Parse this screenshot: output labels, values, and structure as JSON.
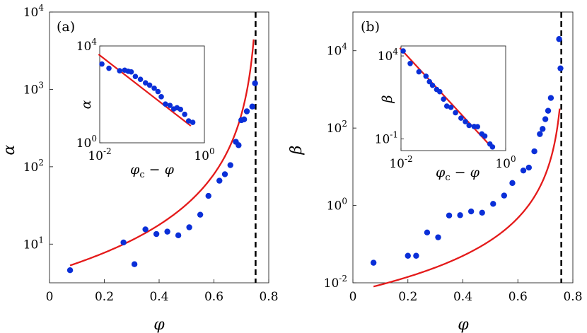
{
  "chart_data": [
    {
      "panel": "(a)",
      "type": "scatter",
      "xlabel": "φ",
      "ylabel": "α",
      "xlim": [
        0,
        0.8
      ],
      "ylim_log10": [
        0.5,
        4
      ],
      "xticks": [
        "0",
        "0.2",
        "0.4",
        "0.6",
        "0.8"
      ],
      "yticks": [
        {
          "base": "10",
          "exp": "1"
        },
        {
          "base": "10",
          "exp": "2"
        },
        {
          "base": "10",
          "exp": "3"
        },
        {
          "base": "10",
          "exp": "4"
        }
      ],
      "critical_phi": 0.752,
      "points": [
        [
          0.075,
          4.6
        ],
        [
          0.27,
          10.5
        ],
        [
          0.31,
          5.5
        ],
        [
          0.35,
          15.5
        ],
        [
          0.39,
          13.5
        ],
        [
          0.43,
          14.5
        ],
        [
          0.47,
          13
        ],
        [
          0.51,
          16.5
        ],
        [
          0.55,
          24
        ],
        [
          0.58,
          42
        ],
        [
          0.62,
          66
        ],
        [
          0.64,
          80
        ],
        [
          0.66,
          105
        ],
        [
          0.68,
          210
        ],
        [
          0.69,
          190
        ],
        [
          0.7,
          400
        ],
        [
          0.71,
          410
        ],
        [
          0.72,
          520
        ],
        [
          0.74,
          600
        ],
        [
          0.75,
          1200
        ]
      ],
      "fit": {
        "A": 5.3,
        "phi_c": 0.765,
        "n": 1.9,
        "x_start": 0.075,
        "x_end": 0.745
      },
      "inset": {
        "xlabel": "φc − φ",
        "ylabel": "α",
        "xticks": [
          {
            "base": "10",
            "exp": "-2"
          },
          {
            "base": "10",
            "exp": "0"
          }
        ],
        "yticks": [
          {
            "base": "10",
            "exp": "0"
          },
          {
            "base": "10",
            "exp": "4"
          }
        ],
        "xlim_log10": [
          -2,
          0
        ],
        "ylim_log10": [
          0,
          4
        ],
        "points": [
          [
            0.011,
            1800
          ],
          [
            0.015,
            1200
          ],
          [
            0.024,
            950
          ],
          [
            0.03,
            1000
          ],
          [
            0.035,
            900
          ],
          [
            0.04,
            850
          ],
          [
            0.048,
            550
          ],
          [
            0.06,
            420
          ],
          [
            0.075,
            300
          ],
          [
            0.09,
            240
          ],
          [
            0.11,
            180
          ],
          [
            0.13,
            130
          ],
          [
            0.15,
            80
          ],
          [
            0.18,
            40
          ],
          [
            0.22,
            35
          ],
          [
            0.26,
            25
          ],
          [
            0.3,
            28
          ],
          [
            0.35,
            24
          ],
          [
            0.42,
            15
          ],
          [
            0.5,
            8
          ],
          [
            0.6,
            7
          ]
        ],
        "fit_line": {
          "x": [
            0.0095,
            0.55
          ],
          "y": [
            4500,
            5
          ]
        }
      }
    },
    {
      "panel": "(b)",
      "type": "scatter",
      "xlabel": "φ",
      "ylabel": "β",
      "xlim": [
        0,
        0.8
      ],
      "ylim_log10": [
        -2,
        5
      ],
      "xticks": [
        "0",
        "0.2",
        "0.4",
        "0.6",
        "0.8"
      ],
      "yticks": [
        {
          "base": "10",
          "exp": "-2"
        },
        {
          "base": "10",
          "exp": "0"
        },
        {
          "base": "10",
          "exp": "2"
        },
        {
          "base": "10",
          "exp": "4"
        }
      ],
      "critical_phi": 0.758,
      "points": [
        [
          0.075,
          0.033
        ],
        [
          0.2,
          0.05
        ],
        [
          0.23,
          0.05
        ],
        [
          0.27,
          0.2
        ],
        [
          0.31,
          0.15
        ],
        [
          0.35,
          0.55
        ],
        [
          0.39,
          0.56
        ],
        [
          0.43,
          0.7
        ],
        [
          0.47,
          0.65
        ],
        [
          0.51,
          1.1
        ],
        [
          0.55,
          1.8
        ],
        [
          0.58,
          3.8
        ],
        [
          0.62,
          8
        ],
        [
          0.64,
          9.5
        ],
        [
          0.66,
          25
        ],
        [
          0.68,
          70
        ],
        [
          0.69,
          95
        ],
        [
          0.7,
          170
        ],
        [
          0.71,
          280
        ],
        [
          0.72,
          600
        ],
        [
          0.75,
          20000
        ],
        [
          0.755,
          3500
        ]
      ],
      "fit": {
        "A": 0.008,
        "phi_c": 0.77,
        "n": 2.9,
        "x_start": 0.075,
        "x_end": 0.752
      },
      "inset": {
        "xlabel": "φc − φ",
        "ylabel": "β",
        "xticks": [
          {
            "base": "10",
            "exp": "-2"
          },
          {
            "base": "10",
            "exp": "0"
          }
        ],
        "yticks": [
          {
            "base": "10",
            "exp": "4"
          },
          {
            "base": "10",
            "exp": "-1"
          }
        ],
        "xlim_log10": [
          -2,
          0
        ],
        "ylim_log10": [
          -1.7,
          4.6
        ],
        "points": [
          [
            0.011,
            20000
          ],
          [
            0.015,
            3500
          ],
          [
            0.022,
            1100
          ],
          [
            0.03,
            600
          ],
          [
            0.035,
            280
          ],
          [
            0.04,
            170
          ],
          [
            0.048,
            95
          ],
          [
            0.055,
            70
          ],
          [
            0.065,
            25
          ],
          [
            0.075,
            9.5
          ],
          [
            0.09,
            8
          ],
          [
            0.11,
            3.8
          ],
          [
            0.14,
            1.8
          ],
          [
            0.17,
            1.1
          ],
          [
            0.2,
            0.65
          ],
          [
            0.25,
            0.56
          ],
          [
            0.29,
            0.55
          ],
          [
            0.35,
            0.2
          ],
          [
            0.4,
            0.15
          ],
          [
            0.5,
            0.05
          ],
          [
            0.56,
            0.033
          ]
        ],
        "fit_line": {
          "x": [
            0.0095,
            0.58
          ],
          "y": [
            30000,
            0.025
          ]
        }
      }
    }
  ]
}
